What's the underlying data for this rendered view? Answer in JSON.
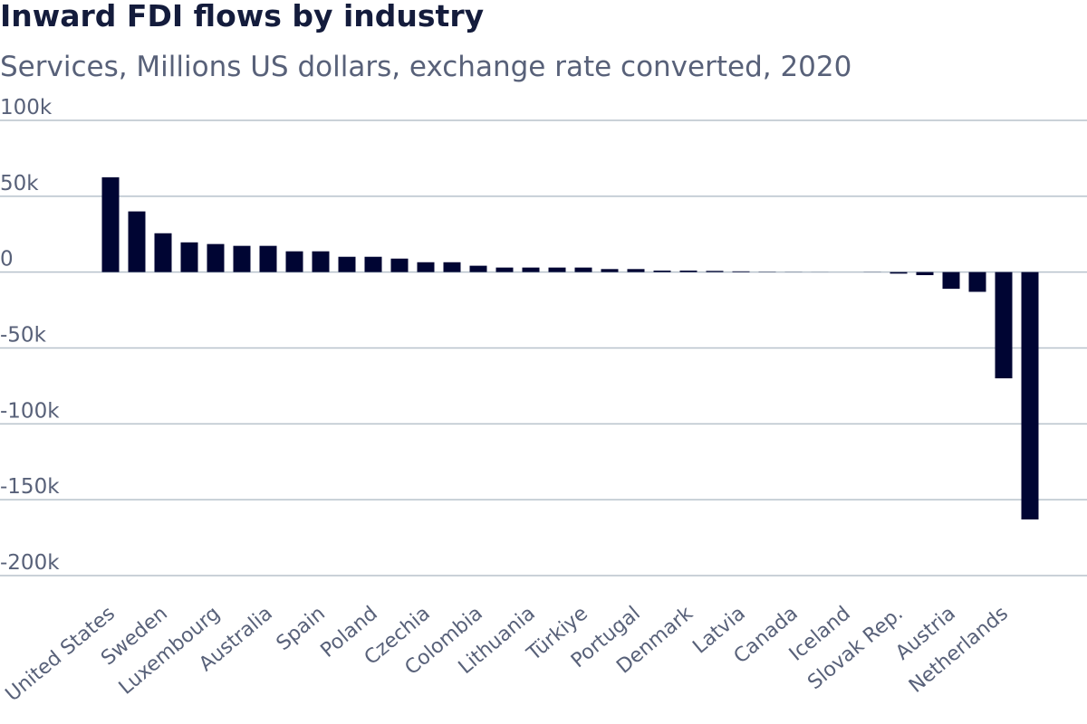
{
  "chart_data": {
    "type": "bar",
    "title": "Inward FDI flows by industry",
    "subtitle": "Services, Millions US dollars, exchange rate converted, 2020",
    "categories": [
      "United States",
      null,
      "Sweden",
      null,
      "Luxembourg",
      null,
      "Australia",
      null,
      "Spain",
      null,
      "Poland",
      null,
      "Czechia",
      null,
      "Colombia",
      null,
      "Lithuania",
      null,
      "Türkiye",
      null,
      "Portugal",
      null,
      "Denmark",
      null,
      "Latvia",
      null,
      "Canada",
      null,
      "Iceland",
      null,
      "Slovak Rep.",
      null,
      "Austria",
      null,
      "Netherlands",
      null
    ],
    "values": [
      62500,
      40000,
      25600,
      19600,
      18500,
      17300,
      17300,
      13700,
      13700,
      10100,
      10100,
      8900,
      6500,
      6500,
      4200,
      3000,
      3000,
      3000,
      3000,
      2000,
      2000,
      1000,
      1000,
      800,
      500,
      200,
      100,
      50,
      0,
      -100,
      -1000,
      -2000,
      -11000,
      -13000,
      -70000,
      -163000
    ],
    "color": "#000533",
    "ylim": [
      -200000,
      100000
    ],
    "yticks": [
      {
        "value": -200000,
        "label": "-200k"
      },
      {
        "value": -150000,
        "label": "-150k"
      },
      {
        "value": -100000,
        "label": "-100k"
      },
      {
        "value": -50000,
        "label": "-50k"
      },
      0,
      {
        "value": 50000,
        "label": "50k"
      },
      {
        "value": 100000,
        "label": "100k"
      }
    ],
    "grid": true
  }
}
